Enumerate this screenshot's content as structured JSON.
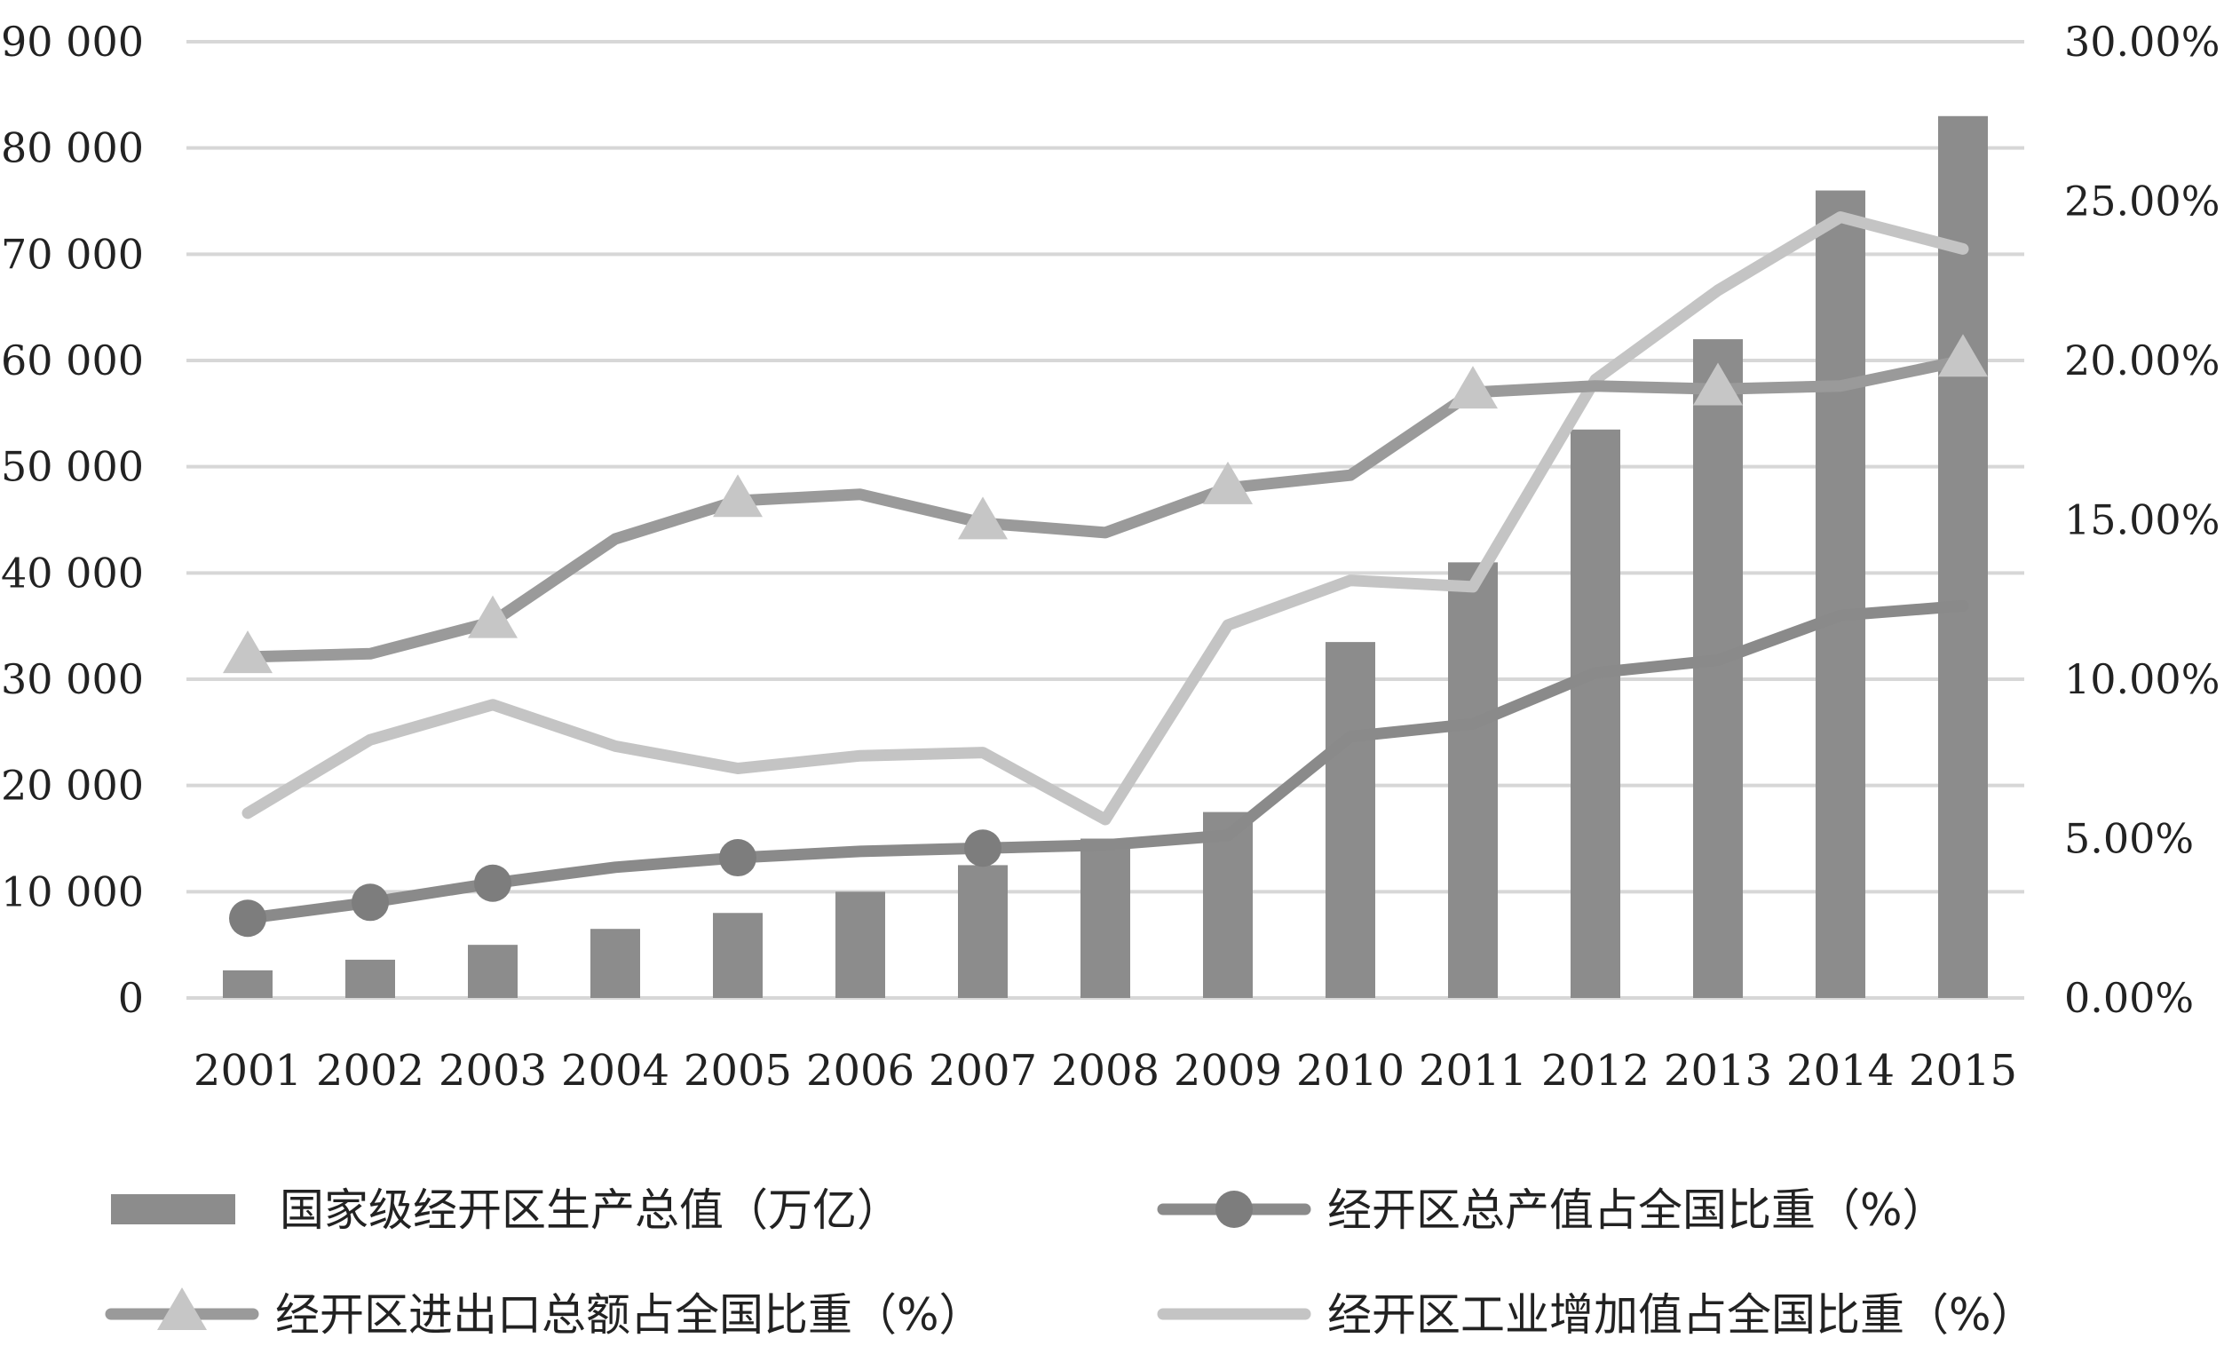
{
  "chart_data": {
    "type": "bar",
    "categories": [
      "2001",
      "2002",
      "2003",
      "2004",
      "2005",
      "2006",
      "2007",
      "2008",
      "2009",
      "2010",
      "2011",
      "2012",
      "2013",
      "2014",
      "2015"
    ],
    "left_axis": {
      "ylim": [
        0,
        90000
      ],
      "ticks": [
        0,
        10000,
        20000,
        30000,
        40000,
        50000,
        60000,
        70000,
        80000,
        90000
      ],
      "tick_labels": [
        "0",
        "10 000",
        "20 000",
        "30 000",
        "40 000",
        "50 000",
        "60 000",
        "70 000",
        "80 000",
        "90 000"
      ]
    },
    "right_axis": {
      "ylim": [
        0,
        30
      ],
      "ticks": [
        0,
        5,
        10,
        15,
        20,
        25,
        30
      ],
      "tick_labels": [
        "0.00%",
        "5.00%",
        "10.00%",
        "15.00%",
        "20.00%",
        "25.00%",
        "30.00%"
      ]
    },
    "grid": true,
    "legend_position": "bottom",
    "series": [
      {
        "name": "国家级经开区生产总值（万亿）",
        "kind": "bar",
        "axis": "left",
        "color": "#8c8c8c",
        "values": [
          2600,
          3600,
          5000,
          6500,
          8000,
          10000,
          12500,
          15000,
          17500,
          33500,
          41000,
          53500,
          62000,
          76000,
          83000
        ]
      },
      {
        "name": "经开区总产值占全国比重（%）",
        "kind": "line",
        "marker": "circle",
        "axis": "right",
        "color": "#8a8a8a",
        "marker_indices": [
          0,
          1,
          2,
          4,
          6
        ],
        "values": [
          2.5,
          3.0,
          3.6,
          4.1,
          4.4,
          4.6,
          4.7,
          4.8,
          5.1,
          8.2,
          8.6,
          10.2,
          10.6,
          12.0,
          12.3
        ]
      },
      {
        "name": "经开区进出口总额占全国比重（%）",
        "kind": "line",
        "marker": "triangle",
        "axis": "right",
        "color": "#9a9a9a",
        "marker_indices": [
          0,
          2,
          4,
          6,
          8,
          10,
          12,
          14
        ],
        "values": [
          10.7,
          10.8,
          11.8,
          14.4,
          15.6,
          15.8,
          14.9,
          14.6,
          16.0,
          16.4,
          19.0,
          19.2,
          19.1,
          19.2,
          20.0
        ]
      },
      {
        "name": "经开区工业增加值占全国比重（%）",
        "kind": "line",
        "marker": "none",
        "axis": "right",
        "color": "#c4c4c4",
        "values": [
          5.8,
          8.1,
          9.2,
          7.9,
          7.2,
          7.6,
          7.7,
          5.6,
          11.7,
          13.1,
          12.9,
          19.4,
          22.2,
          24.5,
          23.5
        ]
      }
    ]
  }
}
